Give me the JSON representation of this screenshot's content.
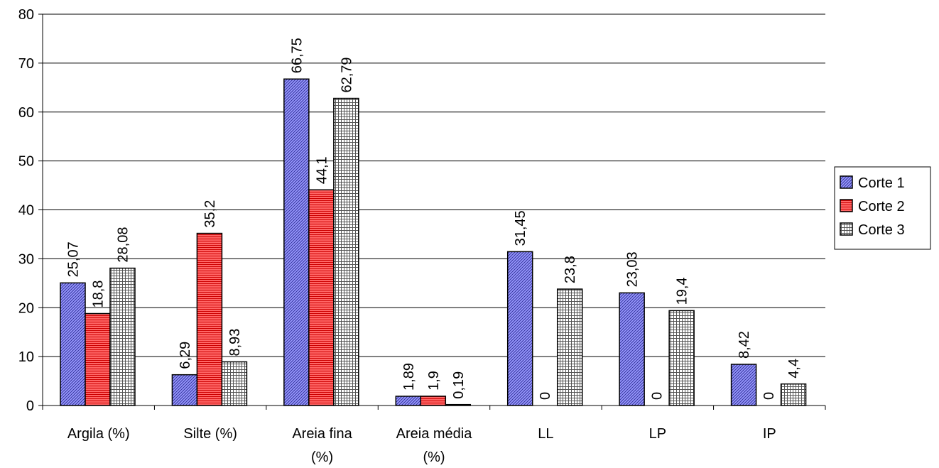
{
  "chart_data": {
    "type": "bar",
    "categories": [
      [
        "Argila (%)"
      ],
      [
        "Silte (%)"
      ],
      [
        "Areia fina",
        "(%)"
      ],
      [
        "Areia média",
        "(%)"
      ],
      [
        "LL"
      ],
      [
        "LP"
      ],
      [
        "IP"
      ]
    ],
    "series": [
      {
        "name": "Corte 1",
        "values": [
          25.07,
          6.29,
          66.75,
          1.89,
          31.45,
          23.03,
          8.42
        ],
        "labels": [
          "25,07",
          "6,29",
          "66,75",
          "1,89",
          "31,45",
          "23,03",
          "8,42"
        ],
        "color": "#9999ff",
        "pattern": "diagonal"
      },
      {
        "name": "Corte 2",
        "values": [
          18.8,
          35.2,
          44.1,
          1.9,
          0,
          0,
          0
        ],
        "labels": [
          "18,8",
          "35,2",
          "44,1",
          "1,9",
          "0",
          "0",
          "0"
        ],
        "color": "#ff6666",
        "pattern": "horizontal"
      },
      {
        "name": "Corte 3",
        "values": [
          28.08,
          8.93,
          62.79,
          0.19,
          23.8,
          19.4,
          4.4
        ],
        "labels": [
          "28,08",
          "8,93",
          "62,79",
          "0,19",
          "23,8",
          "19,4",
          "4,4"
        ],
        "color": "#ffffff",
        "pattern": "grid"
      }
    ],
    "ylim": [
      0,
      80
    ],
    "yticks": [
      "0",
      "10",
      "20",
      "30",
      "40",
      "50",
      "60",
      "70",
      "80"
    ],
    "grid": true,
    "legend": "right"
  }
}
